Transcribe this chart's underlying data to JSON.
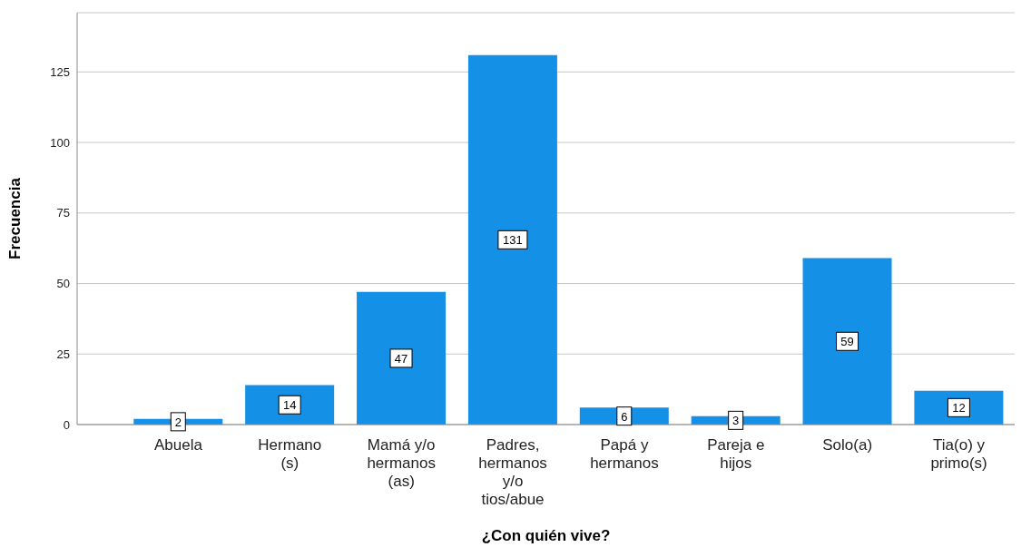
{
  "chart_data": {
    "type": "bar",
    "xlabel": "¿Con quién vive?",
    "ylabel": "Frecuencia",
    "categories": [
      "Abuela",
      "Hermano (s)",
      "Mamá y/o hermanos (as)",
      "Padres, hermanos y/o tios/abue",
      "Papá y hermanos",
      "Pareja e hijos",
      "Solo(a)",
      "Tia(o) y primo(s)"
    ],
    "values": [
      2,
      14,
      47,
      131,
      6,
      3,
      59,
      12
    ],
    "color": "#1490e6",
    "ylim": [
      0,
      146
    ],
    "yticks": [
      0,
      25,
      50,
      75,
      100,
      125
    ],
    "grid": "y",
    "data_labels": true
  }
}
